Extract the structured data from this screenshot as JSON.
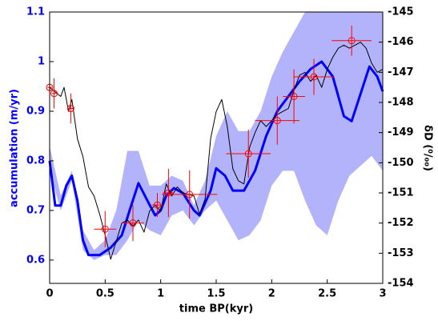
{
  "chart_data": {
    "type": "line",
    "x_label": "time BP(kyr)",
    "y_label": "accumulation (m/yr)",
    "y2_label": "δD (⁰/₀₀)",
    "xlim": [
      0,
      3
    ],
    "xticks": [
      0,
      0.5,
      1,
      1.5,
      2,
      2.5,
      3
    ],
    "ylim": [
      0.553,
      1.1
    ],
    "yticks": [
      0.6,
      0.7,
      0.8,
      0.9,
      1,
      1.1
    ],
    "y2lim": [
      -154,
      -145
    ],
    "y2ticks": [
      -154,
      -153,
      -152,
      -151,
      -150,
      -149,
      -148,
      -147,
      -146,
      -145
    ],
    "series": [
      {
        "type": "band",
        "color": "#b3b3fb",
        "x": [
          0,
          0.1,
          0.2,
          0.3,
          0.4,
          0.5,
          0.6,
          0.7,
          0.8,
          0.9,
          1.0,
          1.1,
          1.2,
          1.3,
          1.4,
          1.5,
          1.6,
          1.7,
          1.8,
          1.9,
          2.0,
          2.1,
          2.2,
          2.3,
          2.4,
          2.5,
          2.6,
          2.7,
          2.8,
          2.9,
          3.0
        ],
        "upper": [
          0.83,
          0.73,
          0.78,
          0.66,
          0.62,
          0.64,
          0.7,
          0.82,
          0.82,
          0.75,
          0.75,
          0.77,
          0.76,
          0.71,
          0.76,
          0.85,
          0.9,
          0.86,
          0.86,
          0.9,
          0.97,
          1.02,
          1.06,
          1.1,
          1.1,
          1.1,
          1.1,
          1.1,
          1.1,
          1.1,
          1.1
        ],
        "lower": [
          0.78,
          0.7,
          0.76,
          0.62,
          0.6,
          0.61,
          0.61,
          0.64,
          0.68,
          0.66,
          0.65,
          0.69,
          0.7,
          0.67,
          0.7,
          0.72,
          0.68,
          0.64,
          0.65,
          0.68,
          0.75,
          0.78,
          0.78,
          0.72,
          0.67,
          0.65,
          0.72,
          0.77,
          0.79,
          0.81,
          0.78
        ]
      },
      {
        "type": "line",
        "color": "#0000ff",
        "x": [
          0,
          0.05,
          0.1,
          0.15,
          0.2,
          0.25,
          0.3,
          0.35,
          0.45,
          0.55,
          0.65,
          0.72,
          0.8,
          0.88,
          0.95,
          1.0,
          1.05,
          1.12,
          1.2,
          1.3,
          1.35,
          1.45,
          1.5,
          1.58,
          1.65,
          1.75,
          1.85,
          1.95,
          2.05,
          2.15,
          2.25,
          2.35,
          2.45,
          2.55,
          2.65,
          2.72,
          2.8,
          2.88,
          2.95,
          3.0
        ],
        "values": [
          0.8,
          0.71,
          0.71,
          0.75,
          0.77,
          0.72,
          0.64,
          0.61,
          0.61,
          0.625,
          0.65,
          0.7,
          0.755,
          0.72,
          0.69,
          0.7,
          0.73,
          0.745,
          0.735,
          0.7,
          0.69,
          0.74,
          0.785,
          0.77,
          0.74,
          0.74,
          0.78,
          0.85,
          0.9,
          0.93,
          0.96,
          0.985,
          1.0,
          0.97,
          0.89,
          0.88,
          0.935,
          0.99,
          0.97,
          0.94
        ]
      },
      {
        "type": "line",
        "axis": "y2",
        "color": "#000000",
        "x": [
          0,
          0.05,
          0.1,
          0.13,
          0.17,
          0.2,
          0.25,
          0.3,
          0.35,
          0.4,
          0.45,
          0.5,
          0.55,
          0.6,
          0.65,
          0.7,
          0.75,
          0.8,
          0.85,
          0.9,
          0.95,
          1.0,
          1.05,
          1.1,
          1.15,
          1.2,
          1.3,
          1.35,
          1.4,
          1.45,
          1.5,
          1.55,
          1.6,
          1.65,
          1.7,
          1.75,
          1.8,
          1.85,
          1.9,
          1.95,
          2.0,
          2.05,
          2.1,
          2.15,
          2.2,
          2.25,
          2.3,
          2.35,
          2.4,
          2.45,
          2.5,
          2.55,
          2.6,
          2.65,
          2.7,
          2.75,
          2.8,
          2.85,
          2.9,
          2.95,
          3.0
        ],
        "values": [
          -147.5,
          -147.65,
          -147.8,
          -147.5,
          -148.3,
          -147.9,
          -149.2,
          -149.8,
          -150.8,
          -151.1,
          -151.7,
          -152.4,
          -153.2,
          -152.6,
          -152.0,
          -151.9,
          -152.1,
          -151.9,
          -152.3,
          -151.6,
          -151.4,
          -151.6,
          -150.7,
          -151.1,
          -150.8,
          -151.0,
          -151.1,
          -151.7,
          -151.2,
          -149.2,
          -148.3,
          -147.9,
          -148.8,
          -150.2,
          -150.6,
          -150.7,
          -149.5,
          -149.0,
          -148.6,
          -148.8,
          -148.6,
          -148.4,
          -148.3,
          -148.2,
          -147.6,
          -147.1,
          -147.0,
          -147.3,
          -147.1,
          -147.5,
          -146.9,
          -146.5,
          -146.2,
          -146.1,
          -146.2,
          -146.1,
          -146.0,
          -146.2,
          -146.7,
          -147.0,
          -146.9
        ]
      },
      {
        "type": "errorbar",
        "axis": "y2",
        "color": "#ff0000",
        "x": [
          0,
          0.04,
          0.19,
          0.5,
          0.75,
          0.97,
          1.07,
          1.26,
          1.79,
          2.05,
          2.2,
          2.38,
          2.72
        ],
        "values": [
          -147.5,
          -147.7,
          -148.2,
          -152.2,
          -152.0,
          -151.4,
          -151.0,
          -151.05,
          -149.7,
          -148.6,
          -147.8,
          -147.15,
          -145.95
        ],
        "xerr": [
          0.02,
          0.02,
          0.03,
          0.1,
          0.1,
          0.05,
          0.05,
          0.25,
          0.2,
          0.2,
          0.1,
          0.18,
          0.18
        ],
        "yerr": [
          0.5,
          0.5,
          0.5,
          0.6,
          0.6,
          0.4,
          0.8,
          0.8,
          0.8,
          0.8,
          0.9,
          0.6,
          0.5
        ]
      }
    ]
  }
}
